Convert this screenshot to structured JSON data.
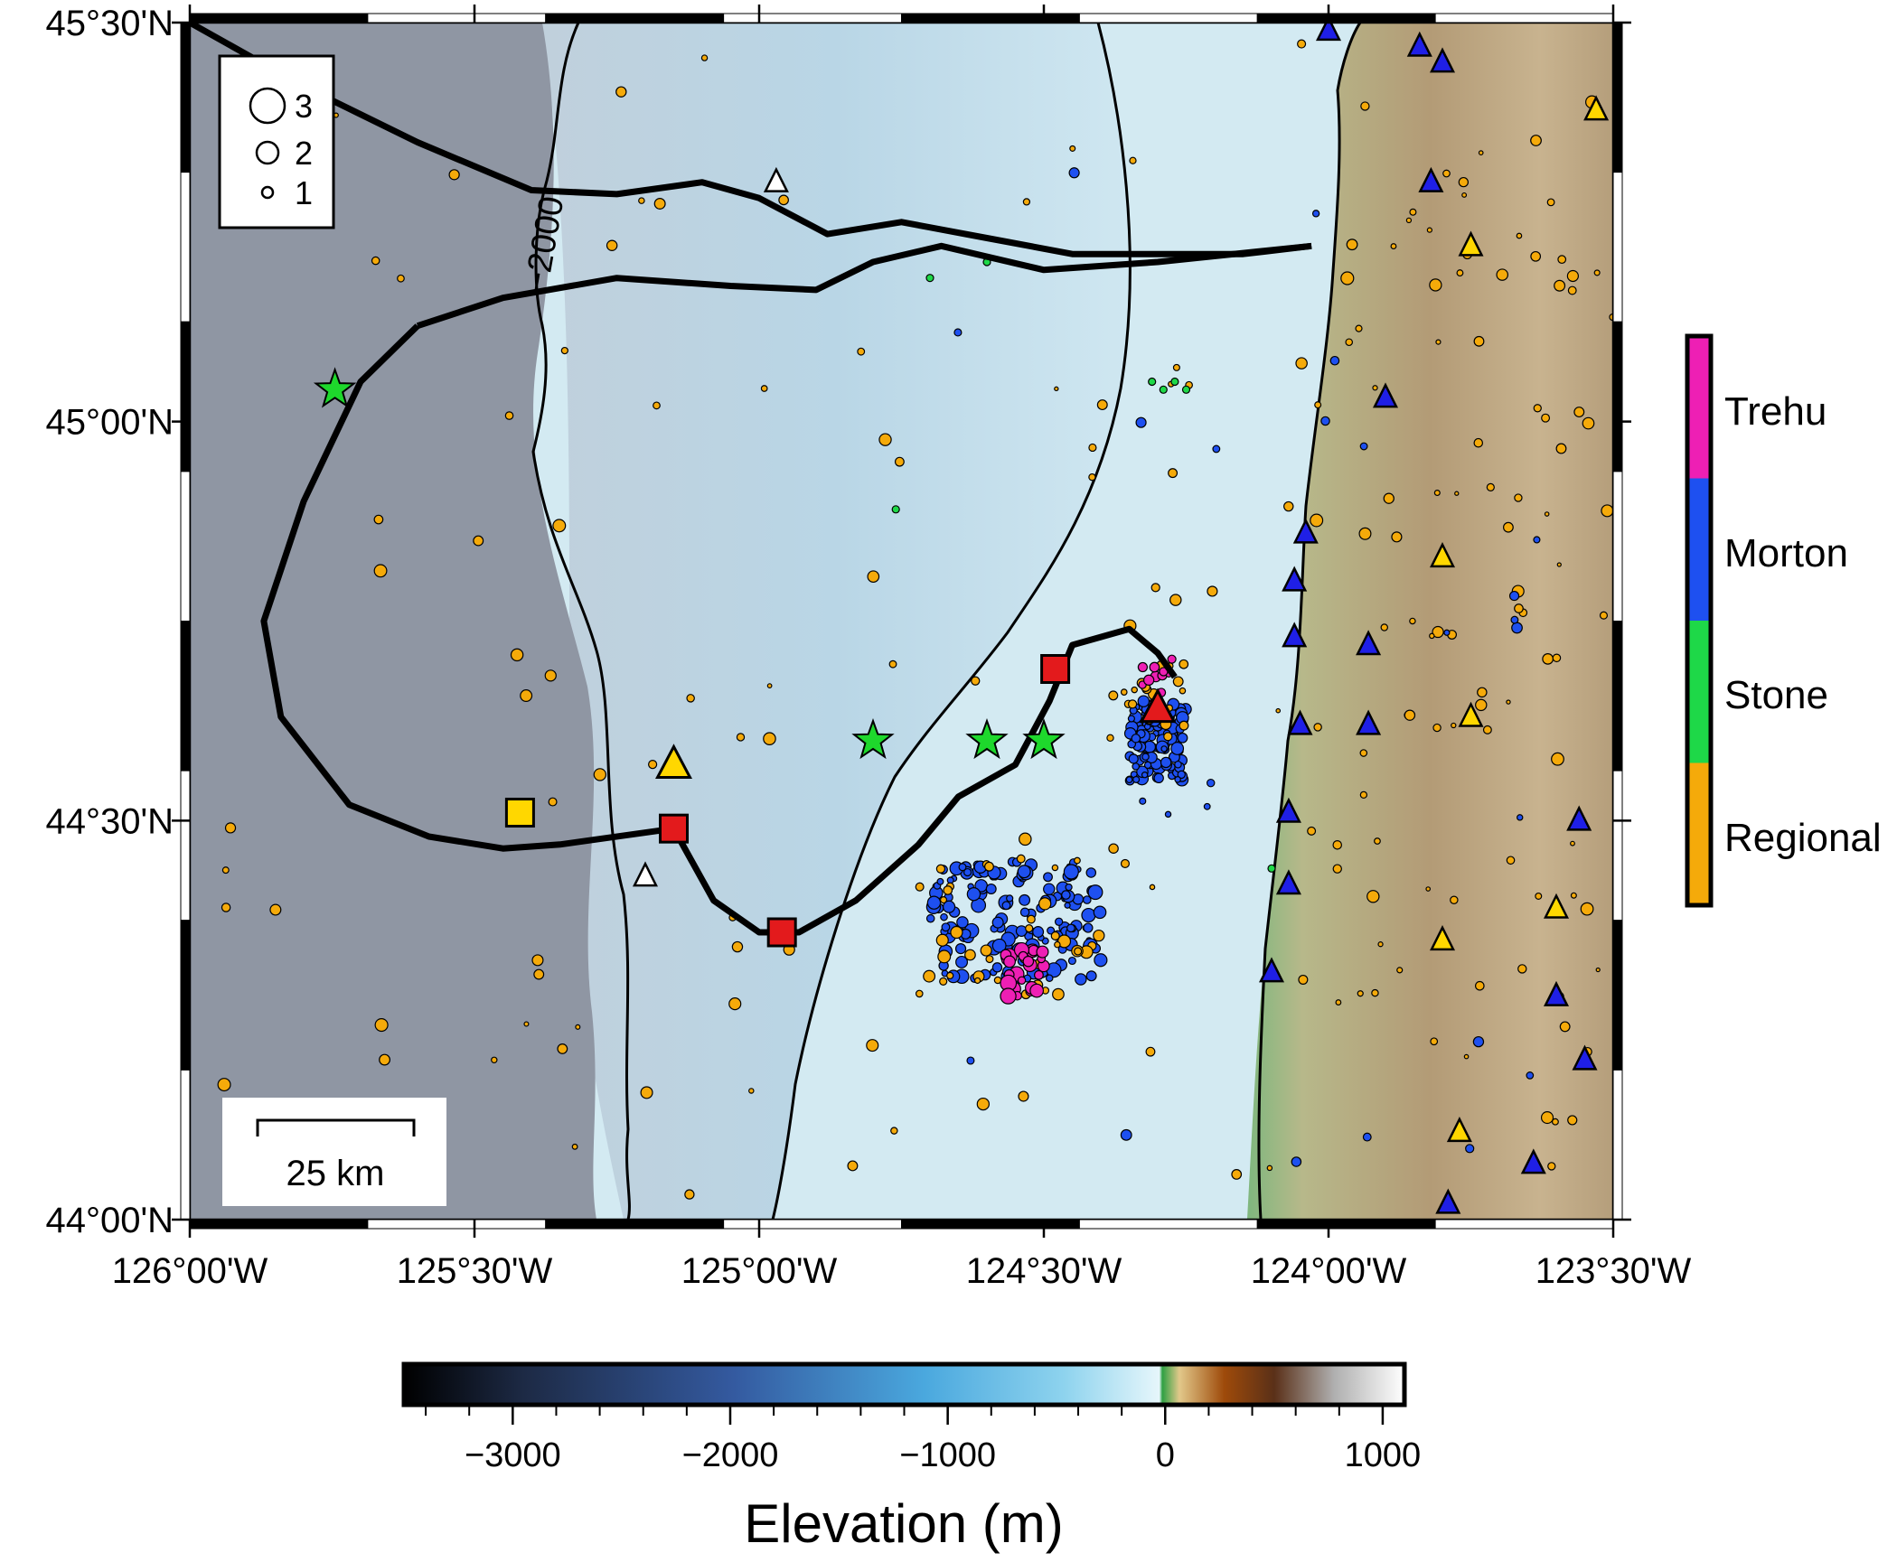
{
  "map": {
    "extent": {
      "lon_min": -126.0,
      "lon_max": -123.5,
      "lat_min": 44.0,
      "lat_max": 45.5
    },
    "lat_ticks": [
      {
        "value": 45.5,
        "label": "45°30'N"
      },
      {
        "value": 45.0,
        "label": "45°00'N"
      },
      {
        "value": 44.5,
        "label": "44°30'N"
      },
      {
        "value": 44.0,
        "label": "44°00'N"
      }
    ],
    "lon_ticks": [
      {
        "value": -126.0,
        "label": "126°00'W"
      },
      {
        "value": -125.5,
        "label": "125°30'W"
      },
      {
        "value": -125.0,
        "label": "125°00'W"
      },
      {
        "value": -124.5,
        "label": "124°30'W"
      },
      {
        "value": -124.0,
        "label": "124°00'W"
      },
      {
        "value": -123.5,
        "label": "123°30'W"
      }
    ],
    "contour_label": "−2000",
    "colors": {
      "abyssal": "#8f96a3",
      "slope": "#a9c7da",
      "shelf": "#d3eaf2",
      "coast_green": "#7fb77e",
      "land": "#b39b76",
      "land_light": "#d8c7a8"
    },
    "magnitude_legend": [
      {
        "label": "3",
        "magnitude": 3
      },
      {
        "label": "2",
        "magnitude": 2
      },
      {
        "label": "1",
        "magnitude": 1
      }
    ],
    "scale_bar": {
      "label": "25 km",
      "length_km": 25
    },
    "catalog_legend": {
      "entries": [
        {
          "label": "Trehu",
          "color": "#ee1fb4"
        },
        {
          "label": "Morton",
          "color": "#1e50f0"
        },
        {
          "label": "Stone",
          "color": "#1ed848"
        },
        {
          "label": "Regional",
          "color": "#f5aa0a"
        }
      ]
    },
    "elevation_colorbar": {
      "title": "Elevation (m)",
      "range": [
        -3500,
        1100
      ],
      "tick_labels": [
        {
          "value": -3000,
          "label": "−3000"
        },
        {
          "value": -2000,
          "label": "−2000"
        },
        {
          "value": -1000,
          "label": "−1000"
        },
        {
          "value": 0,
          "label": "0"
        },
        {
          "value": 1000,
          "label": "1000"
        }
      ]
    },
    "ship_tracks": [
      [
        [
          -126.0,
          45.5
        ],
        [
          -125.8,
          45.42
        ],
        [
          -125.6,
          45.35
        ],
        [
          -125.4,
          45.29
        ],
        [
          -125.25,
          45.285
        ],
        [
          -125.1,
          45.3
        ],
        [
          -125.0,
          45.28
        ],
        [
          -124.88,
          45.235
        ],
        [
          -124.75,
          45.25
        ],
        [
          -124.6,
          45.23
        ],
        [
          -124.45,
          45.21
        ],
        [
          -124.3,
          45.21
        ],
        [
          -124.15,
          45.21
        ],
        [
          -124.03,
          45.22
        ]
      ],
      [
        [
          -125.6,
          45.12
        ],
        [
          -125.45,
          45.155
        ],
        [
          -125.25,
          45.18
        ],
        [
          -125.05,
          45.17
        ],
        [
          -124.9,
          45.165
        ],
        [
          -124.8,
          45.2
        ],
        [
          -124.68,
          45.22
        ],
        [
          -124.5,
          45.19
        ],
        [
          -124.3,
          45.2
        ],
        [
          -124.03,
          45.22
        ]
      ],
      [
        [
          -125.6,
          45.12
        ],
        [
          -125.7,
          45.05
        ],
        [
          -125.8,
          44.9
        ],
        [
          -125.87,
          44.75
        ],
        [
          -125.84,
          44.63
        ],
        [
          -125.72,
          44.52
        ],
        [
          -125.58,
          44.48
        ],
        [
          -125.45,
          44.465
        ],
        [
          -125.35,
          44.47
        ],
        [
          -125.15,
          44.49
        ],
        [
          -125.08,
          44.4
        ],
        [
          -125.0,
          44.36
        ],
        [
          -124.93,
          44.36
        ],
        [
          -124.83,
          44.4
        ],
        [
          -124.72,
          44.47
        ],
        [
          -124.65,
          44.53
        ],
        [
          -124.55,
          44.57
        ],
        [
          -124.49,
          44.65
        ],
        [
          -124.45,
          44.72
        ],
        [
          -124.35,
          44.74
        ],
        [
          -124.3,
          44.71
        ],
        [
          -124.27,
          44.68
        ]
      ]
    ],
    "track_markers": [
      {
        "type": "square",
        "lon": -125.42,
        "lat": 44.51,
        "color": "#ffd700"
      },
      {
        "type": "square",
        "lon": -125.15,
        "lat": 44.49,
        "color": "#e31a1c"
      },
      {
        "type": "square",
        "lon": -124.96,
        "lat": 44.36,
        "color": "#e31a1c"
      },
      {
        "type": "square",
        "lon": -124.48,
        "lat": 44.69,
        "color": "#e31a1c"
      },
      {
        "type": "triangle",
        "lon": -125.15,
        "lat": 44.57,
        "color": "#ffd700"
      },
      {
        "type": "triangle",
        "lon": -124.3,
        "lat": 44.64,
        "color": "#e31a1c"
      }
    ],
    "stars": [
      {
        "lon": -125.745,
        "lat": 45.04
      },
      {
        "lon": -124.8,
        "lat": 44.6
      },
      {
        "lon": -124.6,
        "lat": 44.6
      },
      {
        "lon": -124.5,
        "lat": 44.6
      }
    ],
    "stations": [
      {
        "lon": -124.97,
        "lat": 45.3,
        "color": "#ffffff"
      },
      {
        "lon": -125.2,
        "lat": 44.43,
        "color": "#ffffff"
      },
      {
        "lon": -124.0,
        "lat": 45.49,
        "color": "#1f1fe6"
      },
      {
        "lon": -123.84,
        "lat": 45.47,
        "color": "#1f1fe6"
      },
      {
        "lon": -123.8,
        "lat": 45.45,
        "color": "#1f1fe6"
      },
      {
        "lon": -123.82,
        "lat": 45.3,
        "color": "#1f1fe6"
      },
      {
        "lon": -123.9,
        "lat": 45.03,
        "color": "#1f1fe6"
      },
      {
        "lon": -124.04,
        "lat": 44.86,
        "color": "#1f1fe6"
      },
      {
        "lon": -124.06,
        "lat": 44.8,
        "color": "#1f1fe6"
      },
      {
        "lon": -124.06,
        "lat": 44.73,
        "color": "#1f1fe6"
      },
      {
        "lon": -123.93,
        "lat": 44.72,
        "color": "#1f1fe6"
      },
      {
        "lon": -124.05,
        "lat": 44.62,
        "color": "#1f1fe6"
      },
      {
        "lon": -123.93,
        "lat": 44.62,
        "color": "#1f1fe6"
      },
      {
        "lon": -124.07,
        "lat": 44.51,
        "color": "#1f1fe6"
      },
      {
        "lon": -124.07,
        "lat": 44.42,
        "color": "#1f1fe6"
      },
      {
        "lon": -124.1,
        "lat": 44.31,
        "color": "#1f1fe6"
      },
      {
        "lon": -123.56,
        "lat": 44.5,
        "color": "#1f1fe6"
      },
      {
        "lon": -123.6,
        "lat": 44.28,
        "color": "#1f1fe6"
      },
      {
        "lon": -123.55,
        "lat": 44.2,
        "color": "#1f1fe6"
      },
      {
        "lon": -123.64,
        "lat": 44.07,
        "color": "#1f1fe6"
      },
      {
        "lon": -123.79,
        "lat": 44.02,
        "color": "#1f1fe6"
      },
      {
        "lon": -123.53,
        "lat": 45.39,
        "color": "#ffd700"
      },
      {
        "lon": -123.75,
        "lat": 45.22,
        "color": "#ffd700"
      },
      {
        "lon": -123.8,
        "lat": 44.83,
        "color": "#ffd700"
      },
      {
        "lon": -123.75,
        "lat": 44.63,
        "color": "#ffd700"
      },
      {
        "lon": -123.8,
        "lat": 44.35,
        "color": "#ffd700"
      },
      {
        "lon": -123.6,
        "lat": 44.39,
        "color": "#ffd700"
      },
      {
        "lon": -123.77,
        "lat": 44.11,
        "color": "#ffd700"
      }
    ]
  }
}
